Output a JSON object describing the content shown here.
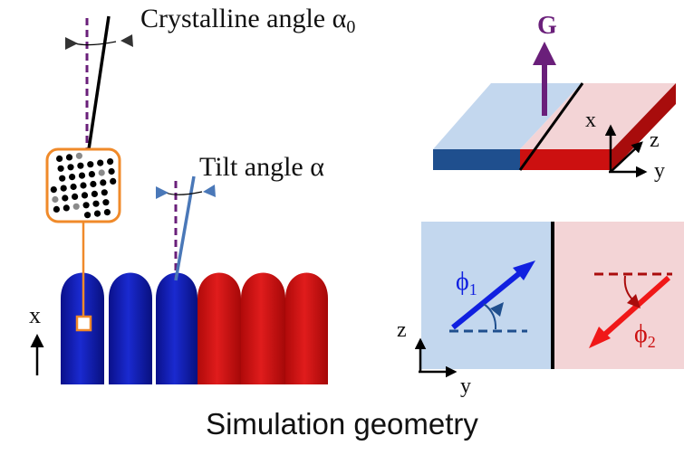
{
  "labels": {
    "crystalline_angle": "Crystalline angle α",
    "crystalline_sub": "0",
    "tilt_angle": "Tilt angle α",
    "gravity": "G",
    "phi1": "ϕ",
    "phi1_sub": "1",
    "phi2": "ϕ",
    "phi2_sub": "2",
    "axis_x_left": "x",
    "axis_x_slab": "x",
    "axis_y_slab": "y",
    "axis_z_slab": "z",
    "axis_z_plan": "z",
    "axis_y_plan": "y"
  },
  "caption": "Simulation geometry",
  "colors": {
    "blue_grain": "#0a14a6",
    "red_grain": "#cc1010",
    "purple": "#6a1f7a",
    "orange": "#f08a2a",
    "light_blue": "#c3d7ee",
    "light_red": "#f3d4d6",
    "steel_blue": "#4a78b8"
  }
}
